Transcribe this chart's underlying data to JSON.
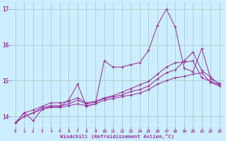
{
  "xlabel": "Windchill (Refroidissement éolien,°C)",
  "background_color": "#cceeff",
  "grid_color": "#aacccc",
  "line_color": "#993399",
  "x": [
    0,
    1,
    2,
    3,
    4,
    5,
    6,
    7,
    8,
    9,
    10,
    11,
    12,
    13,
    14,
    15,
    16,
    17,
    18,
    19,
    20,
    21,
    22,
    23
  ],
  "series": [
    [
      13.82,
      14.1,
      13.88,
      14.2,
      14.28,
      14.28,
      14.45,
      14.9,
      14.28,
      14.35,
      15.55,
      15.38,
      15.38,
      15.45,
      15.5,
      15.85,
      16.55,
      17.0,
      16.5,
      15.35,
      15.25,
      15.9,
      15.05,
      14.92
    ],
    [
      13.82,
      14.1,
      14.18,
      14.28,
      14.38,
      14.38,
      14.42,
      14.52,
      14.38,
      14.42,
      14.52,
      14.58,
      14.68,
      14.78,
      14.88,
      14.98,
      15.18,
      15.38,
      15.5,
      15.52,
      15.55,
      15.08,
      14.98,
      14.88
    ],
    [
      13.82,
      14.0,
      14.1,
      14.25,
      14.3,
      14.3,
      14.35,
      14.45,
      14.35,
      14.4,
      14.5,
      14.55,
      14.6,
      14.7,
      14.75,
      14.85,
      15.05,
      15.22,
      15.3,
      15.55,
      15.8,
      15.28,
      15.1,
      14.88
    ],
    [
      13.82,
      14.0,
      14.1,
      14.2,
      14.25,
      14.25,
      14.3,
      14.35,
      14.3,
      14.35,
      14.45,
      14.5,
      14.55,
      14.6,
      14.65,
      14.75,
      14.9,
      15.0,
      15.08,
      15.12,
      15.18,
      15.22,
      14.95,
      14.85
    ]
  ],
  "ylim": [
    13.7,
    17.2
  ],
  "yticks": [
    14,
    15,
    16,
    17
  ],
  "xlim": [
    -0.5,
    23.5
  ]
}
